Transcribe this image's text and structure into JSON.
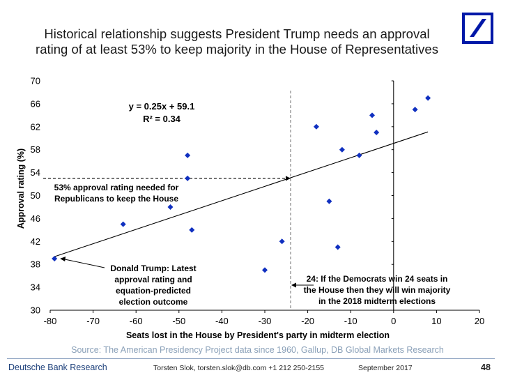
{
  "slide": {
    "title_line1": "Historical relationship suggests President Trump needs an approval",
    "title_line2": "rating of at least 53% to keep majority in the House of Representatives",
    "source": "Source: The American Presidency Project data since 1960, Gallup, DB Global Markets Research",
    "footer_brand": "Deutsche Bank Research",
    "footer_author": "Torsten Slok, torsten.slok@db.com +1 212 250-2155",
    "footer_date": "September  2017",
    "page_number": "48",
    "colors": {
      "brand": "#0018a8",
      "points": "#1030c0",
      "footer": "#1c3f7a",
      "source": "#8aa0b8"
    }
  },
  "chart_data": {
    "type": "scatter",
    "xlabel": "Seats lost in the House by President's party in midterm election",
    "ylabel": "Approval rating (%)",
    "xlim": [
      -80,
      20
    ],
    "ylim": [
      30,
      70
    ],
    "xticks": [
      -80,
      -70,
      -60,
      -50,
      -40,
      -30,
      -20,
      -10,
      0,
      10,
      20
    ],
    "yticks": [
      30,
      34,
      38,
      42,
      46,
      50,
      54,
      58,
      62,
      66,
      70
    ],
    "grid": false,
    "points": [
      {
        "x": -79,
        "y": 39
      },
      {
        "x": -63,
        "y": 45
      },
      {
        "x": -52,
        "y": 48
      },
      {
        "x": -48,
        "y": 57
      },
      {
        "x": -48,
        "y": 53
      },
      {
        "x": -47,
        "y": 44
      },
      {
        "x": -30,
        "y": 37
      },
      {
        "x": -26,
        "y": 42
      },
      {
        "x": -18,
        "y": 62
      },
      {
        "x": -15,
        "y": 49
      },
      {
        "x": -13,
        "y": 41
      },
      {
        "x": -12,
        "y": 58
      },
      {
        "x": -8,
        "y": 57
      },
      {
        "x": -5,
        "y": 64
      },
      {
        "x": -4,
        "y": 61
      },
      {
        "x": 5,
        "y": 65
      },
      {
        "x": 8,
        "y": 67
      }
    ],
    "trendline": {
      "slope": 0.25,
      "intercept": 59.1,
      "x_range": [
        -79,
        8
      ]
    },
    "equation": "y = 0.25x + 59.1",
    "r_squared": "R² = 0.34",
    "reference_lines": [
      {
        "orientation": "vertical",
        "x": -24
      },
      {
        "orientation": "horizontal",
        "y": 53,
        "x_from": -80,
        "x_to": -24
      }
    ],
    "annotations": [
      {
        "id": "ann53",
        "lines": [
          "53% approval rating needed for",
          "Republicans to keep the House"
        ]
      },
      {
        "id": "annTrump",
        "lines": [
          "Donald Trump: Latest",
          "approval rating and",
          "equation-predicted",
          "election outcome"
        ]
      },
      {
        "id": "ann24",
        "lines": [
          "24: If the Democrats win 24 seats in",
          "the House then they will win majority",
          "in the 2018 midterm elections"
        ]
      }
    ]
  }
}
